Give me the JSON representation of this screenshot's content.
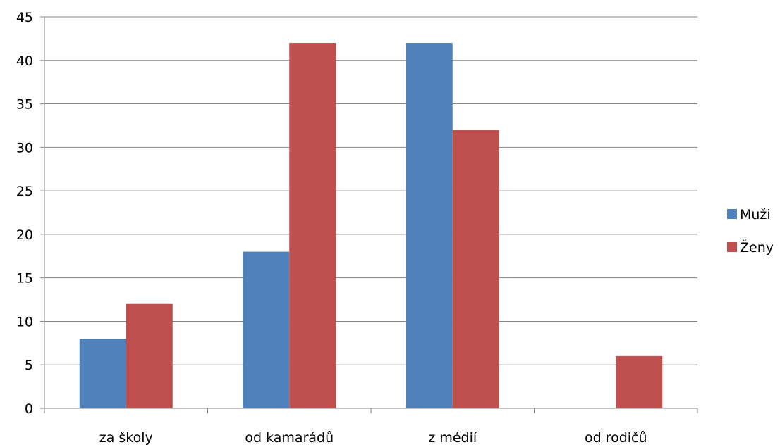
{
  "chart_data": {
    "type": "bar",
    "title": "",
    "xlabel": "",
    "ylabel": "",
    "categories": [
      "za školy",
      "od kamarádů",
      "z médií",
      "od rodičů"
    ],
    "series": [
      {
        "name": "Muži",
        "color": "#4F81BD",
        "values": [
          8,
          18,
          42,
          0
        ]
      },
      {
        "name": "Ženy",
        "color": "#C0504D",
        "values": [
          12,
          42,
          32,
          6
        ]
      }
    ],
    "ylim": [
      0,
      45
    ],
    "yticks": [
      0,
      5,
      10,
      15,
      20,
      25,
      30,
      35,
      40,
      45
    ],
    "grid": true,
    "legend_position": "right"
  }
}
